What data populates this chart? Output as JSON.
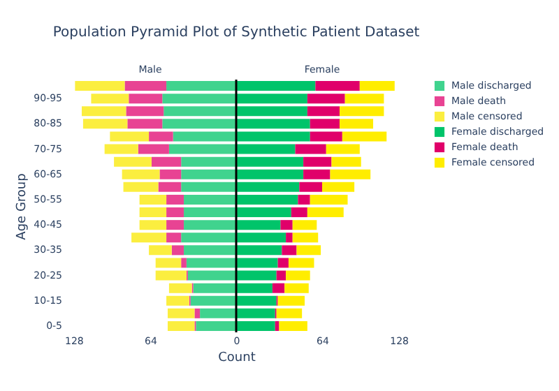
{
  "chart_data": {
    "type": "bar",
    "orientation": "horizontal",
    "stacked": true,
    "title": "Population Pyramid Plot of Synthetic Patient Dataset",
    "xlabel": "Count",
    "ylabel": "Age Group",
    "annotations": [
      "Male",
      "Female"
    ],
    "categories": [
      null,
      "90-95",
      null,
      "80-85",
      null,
      "70-75",
      null,
      "60-65",
      null,
      "50-55",
      null,
      "40-45",
      null,
      "30-35",
      null,
      "20-25",
      null,
      "10-15",
      null,
      "0-5"
    ],
    "series": [
      {
        "name": "Male discharged",
        "color": "#40d38e",
        "values": [
          -52,
          -55,
          -54,
          -55,
          -47,
          -50,
          -41,
          -41,
          -41,
          -39,
          -39,
          -39,
          -41,
          -39,
          -37,
          -36,
          -32,
          -34,
          -27,
          -30
        ]
      },
      {
        "name": "Male death",
        "color": "#e84393",
        "values": [
          -31,
          -25,
          -28,
          -26,
          -18,
          -23,
          -22,
          -16,
          -17,
          -13,
          -13,
          -13,
          -11,
          -9,
          -4,
          -1,
          -1,
          -1,
          -4,
          -1
        ]
      },
      {
        "name": "Male censored",
        "color": "#fbee3f",
        "values": [
          -37,
          -28,
          -33,
          -33,
          -29,
          -25,
          -28,
          -28,
          -26,
          -20,
          -20,
          -20,
          -26,
          -17,
          -19,
          -23,
          -17,
          -17,
          -20,
          -20
        ]
      },
      {
        "name": "Female discharged",
        "color": "#00c46a",
        "values": [
          59,
          53,
          53,
          55,
          55,
          44,
          50,
          50,
          47,
          46,
          41,
          33,
          37,
          34,
          31,
          30,
          27,
          30,
          29,
          29
        ]
      },
      {
        "name": "Female death",
        "color": "#e0006a",
        "values": [
          33,
          28,
          24,
          22,
          24,
          23,
          21,
          20,
          17,
          9,
          12,
          9,
          5,
          11,
          8,
          7,
          9,
          1,
          1,
          3
        ]
      },
      {
        "name": "Female censored",
        "color": "#ffed00",
        "values": [
          26,
          29,
          33,
          25,
          33,
          25,
          22,
          30,
          24,
          28,
          27,
          18,
          19,
          18,
          19,
          18,
          18,
          20,
          19,
          21
        ]
      }
    ],
    "xlim": [
      -128,
      128
    ],
    "xticks": [
      {
        "value": -128,
        "label": "128"
      },
      {
        "value": -64,
        "label": "64"
      },
      0,
      64,
      128
    ],
    "ref_lines": [
      {
        "axis": "x",
        "value": 0,
        "color": "#000000"
      }
    ],
    "grid": false,
    "legend": "right"
  }
}
